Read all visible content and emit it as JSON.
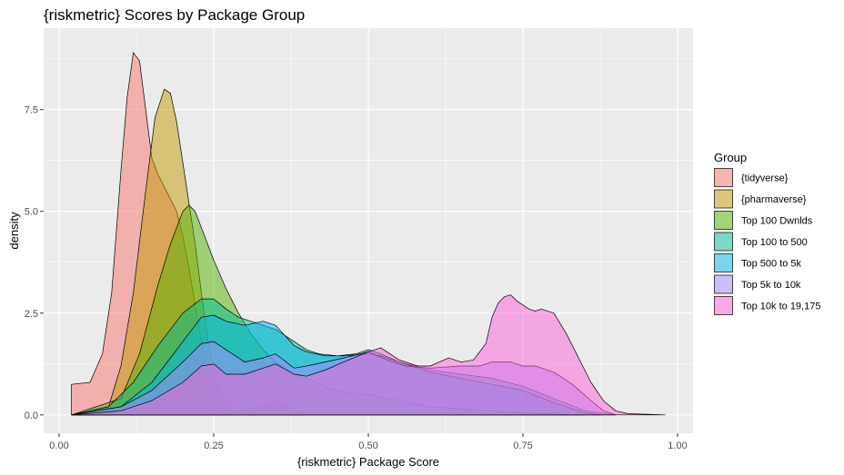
{
  "chart_data": {
    "type": "area",
    "title": "{riskmetric} Scores by Package Group",
    "xlabel": "{riskmetric} Package Score",
    "ylabel": "density",
    "xlim": [
      -0.025,
      1.025
    ],
    "ylim": [
      -0.45,
      9.5
    ],
    "x_ticks": [
      0.0,
      0.25,
      0.5,
      0.75,
      1.0
    ],
    "x_tick_labels": [
      "0.00",
      "0.25",
      "0.50",
      "0.75",
      "1.00"
    ],
    "y_ticks": [
      0.0,
      2.5,
      5.0,
      7.5
    ],
    "y_tick_labels": [
      "0.0",
      "2.5",
      "5.0",
      "7.5"
    ],
    "grid": true,
    "legend_position": "right",
    "legend_title": "Group",
    "fill_opacity": 0.5,
    "series": [
      {
        "name": "{tidyverse}",
        "color": "#F8766D",
        "x": [
          0.02,
          0.05,
          0.07,
          0.085,
          0.1,
          0.11,
          0.12,
          0.13,
          0.14,
          0.15,
          0.16,
          0.17,
          0.18,
          0.19,
          0.2,
          0.21,
          0.22,
          0.23,
          0.24,
          0.25,
          0.26,
          0.27,
          0.28
        ],
        "y": [
          0.75,
          0.8,
          1.5,
          3.0,
          6.0,
          7.8,
          8.9,
          8.7,
          7.5,
          6.3,
          5.9,
          5.6,
          5.3,
          5.0,
          4.4,
          3.6,
          2.7,
          1.8,
          1.0,
          0.4,
          0.15,
          0.05,
          0.0
        ]
      },
      {
        "name": "{pharmaverse}",
        "color": "#C49A00",
        "x": [
          0.02,
          0.08,
          0.1,
          0.12,
          0.14,
          0.155,
          0.17,
          0.18,
          0.19,
          0.2,
          0.21,
          0.22,
          0.23,
          0.24,
          0.25,
          0.27,
          0.29,
          0.3,
          0.32,
          0.35,
          0.38,
          0.4
        ],
        "y": [
          0.0,
          0.2,
          1.2,
          3.0,
          5.5,
          7.3,
          8.0,
          7.9,
          7.2,
          6.2,
          5.2,
          4.2,
          3.0,
          1.9,
          1.0,
          0.3,
          0.1,
          0.1,
          0.2,
          0.3,
          0.15,
          0.0
        ]
      },
      {
        "name": "Top 100 Dwnlds",
        "color": "#53B400",
        "x": [
          0.02,
          0.1,
          0.13,
          0.16,
          0.18,
          0.2,
          0.21,
          0.22,
          0.23,
          0.25,
          0.27,
          0.29,
          0.31,
          0.33,
          0.35,
          0.38,
          0.4,
          0.43,
          0.46,
          0.5,
          0.55,
          0.6,
          0.65,
          0.7,
          0.75,
          0.8,
          0.85
        ],
        "y": [
          0.0,
          0.4,
          1.5,
          3.2,
          4.2,
          5.0,
          5.15,
          5.0,
          4.6,
          3.8,
          3.1,
          2.5,
          2.0,
          1.6,
          1.3,
          1.0,
          0.9,
          0.7,
          0.55,
          0.5,
          0.35,
          0.2,
          0.15,
          0.1,
          0.05,
          0.02,
          0.0
        ]
      },
      {
        "name": "Top 100 to 500",
        "color": "#00C094",
        "x": [
          0.02,
          0.08,
          0.12,
          0.16,
          0.2,
          0.23,
          0.25,
          0.27,
          0.29,
          0.31,
          0.33,
          0.35,
          0.38,
          0.4,
          0.42,
          0.45,
          0.48,
          0.5,
          0.52,
          0.55,
          0.6,
          0.65,
          0.7,
          0.75,
          0.8,
          0.85,
          0.9
        ],
        "y": [
          0.0,
          0.2,
          0.8,
          1.7,
          2.5,
          2.85,
          2.85,
          2.6,
          2.4,
          2.3,
          2.2,
          2.1,
          1.8,
          1.6,
          1.5,
          1.45,
          1.5,
          1.6,
          1.5,
          1.3,
          1.1,
          1.0,
          0.9,
          0.7,
          0.4,
          0.1,
          0.0
        ]
      },
      {
        "name": "Top 500 to 5k",
        "color": "#00B6EB",
        "x": [
          0.02,
          0.1,
          0.15,
          0.2,
          0.23,
          0.25,
          0.27,
          0.3,
          0.33,
          0.35,
          0.38,
          0.4,
          0.43,
          0.46,
          0.5,
          0.52,
          0.55,
          0.6,
          0.65,
          0.7,
          0.75,
          0.8,
          0.85,
          0.88
        ],
        "y": [
          0.0,
          0.2,
          0.8,
          1.8,
          2.4,
          2.45,
          2.3,
          2.2,
          2.3,
          2.2,
          1.7,
          1.55,
          1.45,
          1.45,
          1.5,
          1.45,
          1.3,
          1.05,
          0.9,
          0.75,
          0.6,
          0.3,
          0.05,
          0.0
        ]
      },
      {
        "name": "Top 5k to 10k",
        "color": "#A58AFF",
        "x": [
          0.02,
          0.1,
          0.15,
          0.2,
          0.23,
          0.25,
          0.28,
          0.3,
          0.33,
          0.35,
          0.38,
          0.4,
          0.43,
          0.46,
          0.5,
          0.53,
          0.56,
          0.6,
          0.65,
          0.68,
          0.7,
          0.73,
          0.75,
          0.77,
          0.8,
          0.83,
          0.86,
          0.88,
          0.9
        ],
        "y": [
          0.0,
          0.2,
          0.6,
          1.3,
          1.75,
          1.8,
          1.5,
          1.3,
          1.4,
          1.5,
          1.15,
          1.2,
          1.3,
          1.4,
          1.55,
          1.35,
          1.2,
          1.15,
          1.2,
          1.2,
          1.3,
          1.3,
          1.2,
          1.2,
          1.05,
          0.75,
          0.35,
          0.1,
          0.0
        ]
      },
      {
        "name": "Top 10k to 19,175",
        "color": "#FB61D7",
        "x": [
          0.02,
          0.1,
          0.15,
          0.2,
          0.23,
          0.25,
          0.27,
          0.3,
          0.33,
          0.35,
          0.38,
          0.4,
          0.43,
          0.46,
          0.5,
          0.52,
          0.55,
          0.58,
          0.6,
          0.63,
          0.65,
          0.67,
          0.69,
          0.7,
          0.71,
          0.72,
          0.73,
          0.74,
          0.75,
          0.76,
          0.77,
          0.78,
          0.8,
          0.82,
          0.84,
          0.86,
          0.88,
          0.9,
          0.92,
          0.98
        ],
        "y": [
          0.0,
          0.1,
          0.35,
          0.8,
          1.2,
          1.25,
          1.0,
          1.0,
          1.15,
          1.25,
          1.0,
          0.95,
          1.1,
          1.3,
          1.55,
          1.65,
          1.35,
          1.2,
          1.2,
          1.4,
          1.3,
          1.35,
          1.75,
          2.4,
          2.75,
          2.9,
          2.95,
          2.8,
          2.7,
          2.6,
          2.55,
          2.6,
          2.5,
          2.0,
          1.4,
          0.8,
          0.35,
          0.1,
          0.03,
          0.0
        ]
      }
    ]
  }
}
